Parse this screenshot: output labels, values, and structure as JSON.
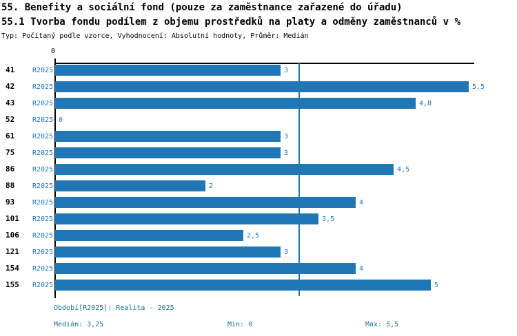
{
  "header": {
    "title_line1": "55. Benefity a sociální fond (pouze za zaměstnance zařazené do úřadu)",
    "title_line2": "55.1 Tvorba fondu podílem z objemu prostředků na platy a odměny zaměstnanců v %",
    "subtitle": "Typ: Počítaný podle vzorce, Vyhodnocení: Absolutní hodnoty, Průměr: Medián"
  },
  "chart_data": {
    "type": "bar",
    "orientation": "horizontal",
    "title": "55.1 Tvorba fondu podílem z objemu prostředků na platy a odměny zaměstnanců v %",
    "categories": [
      "41",
      "42",
      "43",
      "52",
      "61",
      "75",
      "86",
      "88",
      "93",
      "101",
      "106",
      "121",
      "154",
      "155"
    ],
    "series_label": "R2025",
    "values": [
      3,
      5.5,
      4.8,
      0,
      3,
      3,
      4.5,
      2,
      4,
      3.5,
      2.5,
      3,
      4,
      5
    ],
    "value_labels": [
      "3",
      "5,5",
      "4,8",
      "0",
      "3",
      "3",
      "4,5",
      "2",
      "4",
      "3,5",
      "2,5",
      "3",
      "4",
      "5"
    ],
    "xlim": [
      0,
      5.57
    ],
    "x_tick_labels": [
      "0"
    ],
    "median_reference_line": 3.25,
    "grid": false,
    "legend": false,
    "bar_color": "#2176b5",
    "median_line_color": "#2176b5",
    "axis_color": "#000000"
  },
  "footer": {
    "period": "Období[R2025]: Realita - 2025",
    "median": "Medián: 3,25",
    "min": "Min: 0",
    "max": "Max: 5,5"
  },
  "colors": {
    "bar": "#2176b5",
    "blue_text": "#2176b5",
    "footer_text": "#1a7195",
    "title_text": "#000000"
  }
}
